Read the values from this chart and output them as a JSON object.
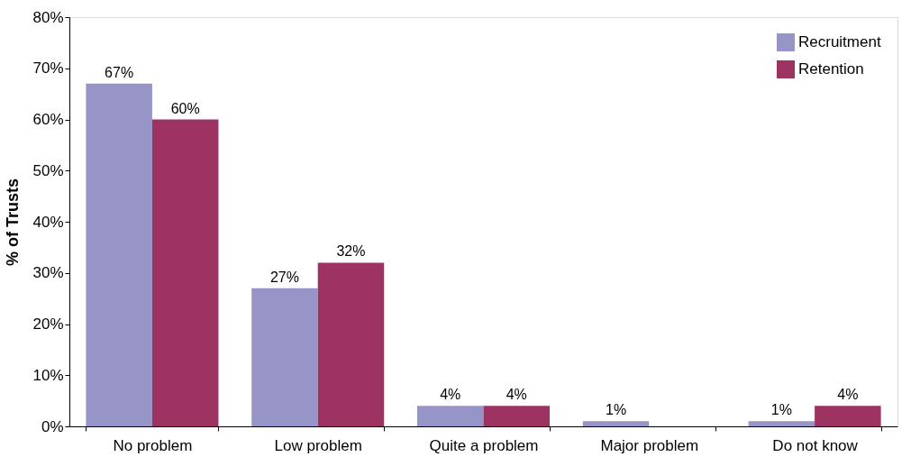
{
  "chart_data": {
    "type": "bar",
    "ylabel": "% of Trusts",
    "categories": [
      "No problem",
      "Low problem",
      "Quite a problem",
      "Major problem",
      "Do not know"
    ],
    "series": [
      {
        "name": "Recruitment",
        "color": "#9795c8",
        "values": [
          67,
          27,
          4,
          1,
          1
        ],
        "value_labels": [
          "67%",
          "27%",
          "4%",
          "1%",
          "1%"
        ]
      },
      {
        "name": "Retention",
        "color": "#9c3362",
        "values": [
          60,
          32,
          4,
          null,
          4
        ],
        "value_labels": [
          "60%",
          "32%",
          "4%",
          null,
          "4%"
        ]
      }
    ],
    "ylim": [
      0,
      80
    ],
    "yticks": [
      {
        "value": 0,
        "label": "0%"
      },
      {
        "value": 10,
        "label": "10%"
      },
      {
        "value": 20,
        "label": "20%"
      },
      {
        "value": 30,
        "label": "30%"
      },
      {
        "value": 40,
        "label": "40%"
      },
      {
        "value": 50,
        "label": "50%"
      },
      {
        "value": 60,
        "label": "60%"
      },
      {
        "value": 70,
        "label": "70%"
      },
      {
        "value": 80,
        "label": "80%"
      }
    ],
    "grid": false,
    "legend": "top right"
  }
}
